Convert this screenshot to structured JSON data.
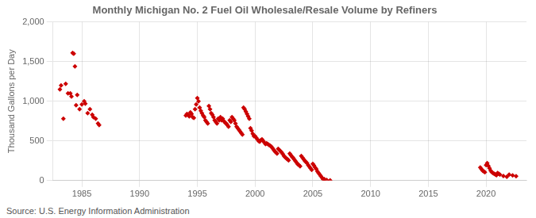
{
  "chart_data": {
    "type": "scatter",
    "title": "Monthly Michigan No. 2 Fuel Oil Wholesale/Resale Volume by Refiners",
    "ylabel": "Thousand Gallons per Day",
    "annotation": "Source: U.S. Energy Information Administration",
    "color": "#cc0000",
    "marker": "diamond",
    "grid": true,
    "xlim": [
      1982.5,
      2023.5
    ],
    "ylim": [
      0,
      2000
    ],
    "xticks": [
      1985,
      1990,
      1995,
      2000,
      2005,
      2010,
      2015,
      2020
    ],
    "yticks": [
      0,
      500,
      {
        "value": 1000,
        "label": "1,000"
      },
      {
        "value": 1500,
        "label": "1,500"
      },
      {
        "value": 2000,
        "label": "2,000"
      }
    ],
    "x": [
      1983.1,
      1983.2,
      1983.4,
      1983.6,
      1983.8,
      1984.0,
      1984.1,
      1984.2,
      1984.3,
      1984.4,
      1984.5,
      1984.6,
      1984.8,
      1985.0,
      1985.2,
      1985.3,
      1985.5,
      1985.7,
      1985.9,
      1986.0,
      1986.2,
      1986.4,
      1986.5,
      1994.0,
      1994.1,
      1994.2,
      1994.3,
      1994.4,
      1994.5,
      1994.6,
      1994.7,
      1994.8,
      1994.9,
      1995.0,
      1995.1,
      1995.2,
      1995.3,
      1995.4,
      1995.5,
      1995.6,
      1995.7,
      1995.8,
      1995.9,
      1996.0,
      1996.1,
      1996.2,
      1996.3,
      1996.4,
      1996.5,
      1996.6,
      1996.7,
      1996.8,
      1996.9,
      1997.0,
      1997.1,
      1997.2,
      1997.3,
      1997.4,
      1997.5,
      1997.6,
      1997.7,
      1997.8,
      1997.9,
      1998.0,
      1998.1,
      1998.2,
      1998.3,
      1998.4,
      1998.5,
      1998.6,
      1998.7,
      1998.8,
      1998.9,
      1999.0,
      1999.1,
      1999.2,
      1999.3,
      1999.4,
      1999.5,
      1999.6,
      1999.7,
      1999.8,
      1999.9,
      2000.0,
      2000.1,
      2000.2,
      2000.3,
      2000.4,
      2000.5,
      2000.6,
      2000.7,
      2000.8,
      2000.9,
      2001.0,
      2001.1,
      2001.2,
      2001.3,
      2001.4,
      2001.5,
      2001.6,
      2001.7,
      2001.8,
      2001.9,
      2002.0,
      2002.1,
      2002.2,
      2002.3,
      2002.4,
      2002.5,
      2002.6,
      2002.7,
      2002.8,
      2002.9,
      2003.0,
      2003.1,
      2003.2,
      2003.3,
      2003.4,
      2003.5,
      2003.6,
      2003.7,
      2003.8,
      2003.9,
      2004.0,
      2004.1,
      2004.2,
      2004.3,
      2004.4,
      2004.5,
      2004.6,
      2004.7,
      2004.8,
      2004.9,
      2005.0,
      2005.1,
      2005.2,
      2005.3,
      2005.4,
      2005.5,
      2005.6,
      2005.7,
      2005.8,
      2005.9,
      2006.0,
      2006.2,
      2006.5,
      2019.5,
      2019.6,
      2019.7,
      2019.8,
      2019.9,
      2020.0,
      2020.1,
      2020.2,
      2020.3,
      2020.4,
      2020.5,
      2020.6,
      2020.7,
      2020.8,
      2020.9,
      2021.0,
      2021.1,
      2021.2,
      2021.5,
      2021.8,
      2022.0,
      2022.3,
      2022.6
    ],
    "values": [
      1150,
      1200,
      780,
      1220,
      1100,
      1100,
      1060,
      1610,
      1600,
      1440,
      950,
      1080,
      900,
      960,
      1000,
      970,
      850,
      900,
      830,
      800,
      780,
      720,
      700,
      820,
      840,
      830,
      810,
      860,
      840,
      800,
      790,
      900,
      960,
      1040,
      1000,
      920,
      880,
      850,
      820,
      800,
      760,
      740,
      720,
      940,
      900,
      850,
      830,
      800,
      760,
      740,
      720,
      780,
      760,
      800,
      760,
      780,
      750,
      730,
      720,
      700,
      680,
      760,
      740,
      800,
      780,
      760,
      720,
      680,
      660,
      640,
      620,
      600,
      580,
      920,
      900,
      870,
      840,
      810,
      780,
      660,
      630,
      590,
      560,
      560,
      540,
      520,
      500,
      490,
      510,
      520,
      500,
      480,
      460,
      470,
      460,
      450,
      440,
      430,
      410,
      390,
      370,
      355,
      340,
      400,
      385,
      370,
      355,
      335,
      310,
      295,
      280,
      270,
      255,
      340,
      320,
      300,
      285,
      265,
      245,
      225,
      205,
      195,
      180,
      310,
      290,
      270,
      250,
      235,
      220,
      195,
      175,
      155,
      135,
      210,
      190,
      165,
      145,
      115,
      95,
      75,
      55,
      35,
      15,
      18,
      8,
      4,
      165,
      145,
      125,
      115,
      105,
      195,
      220,
      185,
      155,
      125,
      105,
      95,
      85,
      78,
      68,
      95,
      85,
      75,
      58,
      48,
      75,
      65,
      55
    ]
  }
}
